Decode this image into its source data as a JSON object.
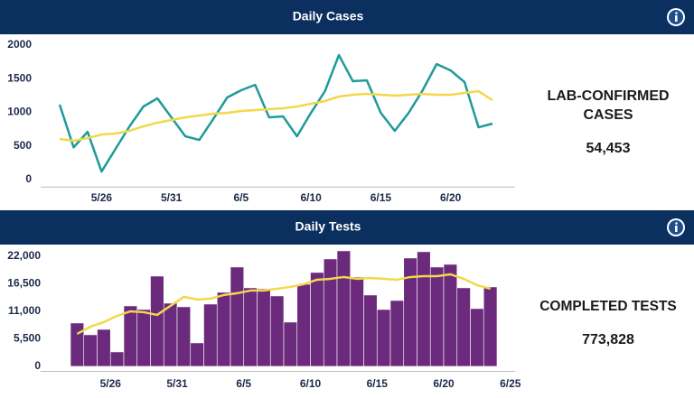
{
  "chart_data": [
    {
      "type": "line",
      "title": "Daily Cases",
      "categories": [
        null,
        null,
        null,
        "5/26",
        null,
        null,
        null,
        null,
        "5/31",
        null,
        null,
        null,
        null,
        "6/5",
        null,
        null,
        null,
        null,
        "6/10",
        null,
        null,
        null,
        null,
        "6/15",
        null,
        null,
        null,
        null,
        "6/20",
        null,
        null,
        null
      ],
      "series": [
        {
          "color": "#1f9a9a",
          "values": [
            1114,
            480,
            711,
            120,
            456,
            790,
            1087,
            1208,
            926,
            644,
            590,
            900,
            1221,
            1329,
            1409,
            926,
            940,
            644,
            993,
            1315,
            1852,
            1463,
            1476,
            993,
            725,
            993,
            1329,
            1718,
            1624,
            1450,
            778,
            832
          ]
        },
        {
          "color": "#f2d84a",
          "values": [
            604,
            577,
            617,
            671,
            685,
            725,
            792,
            846,
            886,
            926,
            953,
            980,
            993,
            1020,
            1033,
            1047,
            1060,
            1087,
            1128,
            1168,
            1235,
            1262,
            1275,
            1262,
            1248,
            1262,
            1275,
            1262,
            1262,
            1289,
            1315,
            1181
          ]
        }
      ],
      "ylim": [
        -110,
        2130
      ],
      "yticks": [
        0,
        500,
        1000,
        1500,
        2000
      ],
      "grid": false
    },
    {
      "type": "bar",
      "title": "Daily Tests",
      "categories": [
        null,
        null,
        null,
        "5/26",
        null,
        null,
        null,
        null,
        "5/31",
        null,
        null,
        null,
        null,
        "6/5",
        null,
        null,
        null,
        null,
        "6/10",
        null,
        null,
        null,
        null,
        "6/15",
        null,
        null,
        null,
        null,
        "6/20",
        null,
        null,
        null,
        null,
        "6/25"
      ],
      "series": [
        {
          "type": "bar",
          "color": "#6b2a7b",
          "values": [
            8660,
            6310,
            7390,
            2890,
            12080,
            11360,
            18030,
            12620,
            11900,
            4690,
            12440,
            14790,
            19840,
            15690,
            15510,
            14070,
            8840,
            16410,
            18760,
            21460,
            23080,
            17850,
            14250,
            11360,
            13160,
            21640,
            22900,
            19840,
            20380,
            15690,
            11540,
            15870,
            null,
            null
          ]
        },
        {
          "type": "line",
          "color": "#f2d84a",
          "values": [
            6490,
            7930,
            8840,
            10100,
            11000,
            10820,
            10280,
            12080,
            13890,
            13350,
            13530,
            14250,
            14610,
            15150,
            15150,
            15510,
            15870,
            16410,
            17310,
            17490,
            17850,
            17490,
            17670,
            17490,
            17310,
            17850,
            18030,
            18030,
            18390,
            17490,
            16230,
            15510,
            null,
            null
          ]
        }
      ],
      "ylim": [
        -1000,
        23700
      ],
      "yticks": [
        0,
        {
          "value": 5500,
          "label": "5,500"
        },
        {
          "value": 11000,
          "label": "11,000"
        },
        {
          "value": 16500,
          "label": "16,500"
        },
        {
          "value": 22000,
          "label": "22,000"
        }
      ],
      "grid": false
    }
  ],
  "summaries": [
    {
      "label": "LAB-CONFIRMED CASES",
      "value": "54,453"
    },
    {
      "label": "COMPLETED TESTS",
      "value": "773,828"
    }
  ]
}
